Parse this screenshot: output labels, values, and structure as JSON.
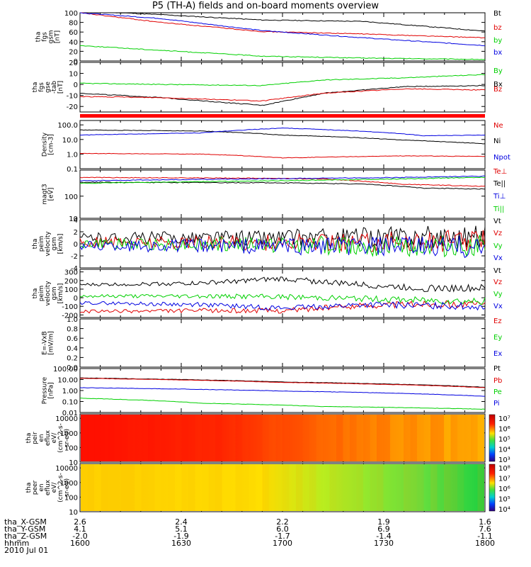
{
  "page": {
    "title": "P5 (TH-A) fields and on-board moments overview"
  },
  "colors": {
    "black": "#000000",
    "red": "#e00000",
    "green": "#00d000",
    "blue": "#0000e0",
    "axis": "#000000"
  },
  "chart_data": [
    {
      "id": "p1",
      "type": "line",
      "ylabel": [
        "tha",
        "fgs",
        "gsm",
        "[nT]"
      ],
      "yticks": [
        "100",
        "80",
        "60",
        "40",
        "20",
        "0"
      ],
      "ylim": [
        0,
        100
      ],
      "scale": "linear",
      "series": [
        {
          "name": "Bt",
          "color": "#000000",
          "points": [
            [
              0,
              104
            ],
            [
              0.2,
              96
            ],
            [
              0.45,
              85
            ],
            [
              0.7,
              82
            ],
            [
              1,
              62
            ]
          ]
        },
        {
          "name": "bz",
          "color": "#e00000",
          "points": [
            [
              0,
              100
            ],
            [
              0.2,
              80
            ],
            [
              0.45,
              61
            ],
            [
              0.7,
              56
            ],
            [
              1,
              48
            ]
          ]
        },
        {
          "name": "by",
          "color": "#00d000",
          "points": [
            [
              0,
              32
            ],
            [
              0.2,
              22
            ],
            [
              0.45,
              10
            ],
            [
              0.7,
              6
            ],
            [
              1,
              3
            ]
          ]
        },
        {
          "name": "bx",
          "color": "#0000e0",
          "points": [
            [
              0,
              100
            ],
            [
              0.2,
              88
            ],
            [
              0.45,
              63
            ],
            [
              0.7,
              48
            ],
            [
              1,
              32
            ]
          ]
        }
      ]
    },
    {
      "id": "p2",
      "type": "line",
      "ylabel": [
        "tha",
        "fgs",
        "gse",
        "-tab",
        "[nT]"
      ],
      "yticks": [
        "20",
        "10",
        "0",
        "-10",
        "-20"
      ],
      "ylim": [
        -25,
        20
      ],
      "scale": "linear",
      "series": [
        {
          "name": "By",
          "color": "#00d000",
          "points": [
            [
              0,
              1
            ],
            [
              0.2,
              0
            ],
            [
              0.45,
              -1
            ],
            [
              0.6,
              4
            ],
            [
              0.8,
              6
            ],
            [
              1,
              9
            ]
          ]
        },
        {
          "name": "Bx",
          "color": "#000000",
          "points": [
            [
              0,
              -8
            ],
            [
              0.2,
              -12
            ],
            [
              0.45,
              -19
            ],
            [
              0.6,
              -8
            ],
            [
              0.8,
              -2
            ],
            [
              1,
              -1
            ]
          ]
        },
        {
          "name": "Bz",
          "color": "#e00000",
          "points": [
            [
              0,
              -11
            ],
            [
              0.2,
              -12
            ],
            [
              0.45,
              -15
            ],
            [
              0.6,
              -8
            ],
            [
              0.8,
              -4
            ],
            [
              1,
              -5
            ]
          ]
        }
      ]
    },
    {
      "id": "p4",
      "type": "line",
      "ylabel": [
        "Density",
        "[cm-3]"
      ],
      "yticks": [
        "100.0",
        "10.0",
        "1.0",
        "0.1"
      ],
      "ylim": [
        0.1,
        200
      ],
      "scale": "log",
      "series": [
        {
          "name": "Ne",
          "color": "#e00000",
          "points": [
            [
              0,
              1.1
            ],
            [
              0.3,
              1.0
            ],
            [
              0.5,
              0.55
            ],
            [
              0.8,
              0.75
            ],
            [
              1,
              0.7
            ]
          ]
        },
        {
          "name": "Ni",
          "color": "#000000",
          "points": [
            [
              0,
              45
            ],
            [
              0.3,
              38
            ],
            [
              0.5,
              20
            ],
            [
              0.8,
              9
            ],
            [
              1,
              5
            ]
          ]
        },
        {
          "name": "Npot",
          "color": "#0000e0",
          "points": [
            [
              0,
              20
            ],
            [
              0.3,
              28
            ],
            [
              0.5,
              60
            ],
            [
              0.75,
              30
            ],
            [
              0.85,
              18
            ],
            [
              1,
              20
            ]
          ]
        }
      ]
    },
    {
      "id": "p5",
      "type": "line",
      "ylabel": [
        "magt3",
        "[eV]"
      ],
      "yticks": [
        "100",
        "10"
      ],
      "ylim": [
        10,
        1500
      ],
      "scale": "log",
      "series": [
        {
          "name": "Te⊥",
          "color": "#e00000",
          "points": [
            [
              0,
              700
            ],
            [
              0.4,
              650
            ],
            [
              0.6,
              600
            ],
            [
              0.8,
              340
            ],
            [
              1,
              280
            ]
          ]
        },
        {
          "name": "Te||",
          "color": "#000000",
          "points": [
            [
              0,
              420
            ],
            [
              0.5,
              400
            ],
            [
              0.7,
              350
            ],
            [
              0.85,
              230
            ],
            [
              1,
              210
            ]
          ]
        },
        {
          "name": "Ti⊥",
          "color": "#0000e0",
          "points": [
            [
              0,
              500
            ],
            [
              0.5,
              620
            ],
            [
              0.8,
              700
            ],
            [
              1,
              800
            ]
          ]
        },
        {
          "name": "Ti||",
          "color": "#00d000",
          "points": [
            [
              0,
              380
            ],
            [
              0.5,
              500
            ],
            [
              0.8,
              600
            ],
            [
              1,
              720
            ]
          ]
        }
      ]
    },
    {
      "id": "p6",
      "type": "line",
      "ylabel": [
        "tha",
        "peim",
        "velocity",
        "gsm",
        "[km/s]"
      ],
      "yticks": [
        "4",
        "2",
        "0",
        "-2",
        "-4"
      ],
      "ylim": [
        -4,
        4
      ],
      "scale": "linear",
      "series": [
        {
          "name": "Vt",
          "color": "#000000",
          "points": [
            [
              0,
              1.0
            ],
            [
              0.5,
              1.0
            ],
            [
              1,
              1.2
            ]
          ]
        },
        {
          "name": "Vz",
          "color": "#e00000",
          "points": [
            [
              0,
              0.3
            ],
            [
              0.5,
              0.2
            ],
            [
              1,
              0.5
            ]
          ]
        },
        {
          "name": "Vy",
          "color": "#00d000",
          "points": [
            [
              0,
              0.0
            ],
            [
              0.5,
              -0.2
            ],
            [
              1,
              -0.5
            ]
          ]
        },
        {
          "name": "Vx",
          "color": "#0000e0",
          "points": [
            [
              0,
              -0.3
            ],
            [
              0.5,
              -0.4
            ],
            [
              1,
              -0.6
            ]
          ]
        }
      ]
    },
    {
      "id": "p7",
      "type": "line",
      "ylabel": [
        "tha",
        "peim",
        "velocity",
        "gsm",
        "[km/s]"
      ],
      "yticks": [
        "300",
        "200",
        "100",
        "0",
        "-100",
        "-200"
      ],
      "ylim": [
        -230,
        330
      ],
      "scale": "linear",
      "series": [
        {
          "name": "Vt",
          "color": "#000000",
          "points": [
            [
              0,
              150
            ],
            [
              0.3,
              170
            ],
            [
              0.5,
              220
            ],
            [
              0.7,
              150
            ],
            [
              0.85,
              110
            ],
            [
              1,
              110
            ]
          ]
        },
        {
          "name": "Vz",
          "color": "#e00000",
          "points": [
            [
              0,
              -160
            ],
            [
              0.3,
              -150
            ],
            [
              0.5,
              -150
            ],
            [
              0.7,
              -90
            ],
            [
              0.85,
              -70
            ],
            [
              1,
              -80
            ]
          ]
        },
        {
          "name": "Vy",
          "color": "#00d000",
          "points": [
            [
              0,
              20
            ],
            [
              0.3,
              20
            ],
            [
              0.5,
              10
            ],
            [
              0.7,
              -10
            ],
            [
              0.85,
              -30
            ],
            [
              1,
              -40
            ]
          ]
        },
        {
          "name": "Vx",
          "color": "#0000e0",
          "points": [
            [
              0,
              -60
            ],
            [
              0.3,
              -80
            ],
            [
              0.5,
              -120
            ],
            [
              0.7,
              -80
            ],
            [
              0.85,
              -90
            ],
            [
              1,
              -100
            ]
          ]
        }
      ]
    },
    {
      "id": "p8",
      "type": "line",
      "ylabel": [
        "E=-VxB",
        "[mV/m]"
      ],
      "yticks": [
        "1.0",
        "0.8",
        "0.6",
        "0.4",
        "0.2",
        "0.0"
      ],
      "ylim": [
        0,
        1
      ],
      "scale": "linear",
      "series": [
        {
          "name": "Ez",
          "color": "#e00000",
          "points": []
        },
        {
          "name": "Ey",
          "color": "#00d000",
          "points": []
        },
        {
          "name": "Ex",
          "color": "#0000e0",
          "points": []
        }
      ]
    },
    {
      "id": "p9",
      "type": "line",
      "ylabel": [
        "Pressure",
        "[nPa]"
      ],
      "yticks": [
        "100.00",
        "10.00",
        "1.00",
        "0.10",
        "0.01"
      ],
      "ylim": [
        0.01,
        100
      ],
      "scale": "log",
      "series": [
        {
          "name": "Pt",
          "color": "#000000",
          "points": [
            [
              0,
              14
            ],
            [
              0.5,
              6
            ],
            [
              1,
              2
            ]
          ]
        },
        {
          "name": "Pb",
          "color": "#e00000",
          "points": [
            [
              0,
              13
            ],
            [
              0.5,
              5.5
            ],
            [
              1,
              1.8
            ]
          ]
        },
        {
          "name": "Pe",
          "color": "#00d000",
          "points": [
            [
              0,
              0.2
            ],
            [
              0.3,
              0.07
            ],
            [
              0.6,
              0.035
            ],
            [
              1,
              0.02
            ]
          ]
        },
        {
          "name": "Pi",
          "color": "#0000e0",
          "points": [
            [
              0,
              1.8
            ],
            [
              0.5,
              0.9
            ],
            [
              1,
              0.3
            ]
          ]
        }
      ]
    },
    {
      "id": "p10",
      "type": "heatmap",
      "ylabel": [
        "tha",
        "peir",
        "en",
        "eflux",
        "eV/",
        "(cm^2-s-",
        "sr-eV)"
      ],
      "yticks": [
        "10000",
        "1000",
        "100",
        "10"
      ],
      "ylim": [
        10,
        20000
      ],
      "scale": "log",
      "colorbar_ticks": [
        "10⁷",
        "10⁶",
        "10⁵",
        "10⁴",
        "10³"
      ]
    },
    {
      "id": "p11",
      "type": "heatmap",
      "ylabel": [
        "tha",
        "peer",
        "en",
        "eflux",
        "eV/",
        "(cm^2-s-",
        "sr-eV)"
      ],
      "yticks": [
        "10000",
        "1000",
        "100",
        "10"
      ],
      "ylim": [
        10,
        20000
      ],
      "scale": "log",
      "colorbar_ticks": [
        "10⁸",
        "10⁷",
        "10⁶",
        "10⁵",
        "10⁴"
      ]
    }
  ],
  "ephemeris": {
    "rows": [
      {
        "label": "tha_X-GSM",
        "values": [
          "2.6",
          "2.4",
          "2.2",
          "1.9",
          "1.6"
        ]
      },
      {
        "label": "tha_Y-GSM",
        "values": [
          "4.1",
          "5.1",
          "6.0",
          "6.9",
          "7.6"
        ]
      },
      {
        "label": "tha_Z-GSM",
        "values": [
          "-2.0",
          "-1.9",
          "-1.7",
          "-1.4",
          "-1.1"
        ]
      },
      {
        "label": "hhmm",
        "values": [
          "1600",
          "1630",
          "1700",
          "1730",
          "1800"
        ]
      }
    ],
    "date": "2010 Jul 01"
  }
}
